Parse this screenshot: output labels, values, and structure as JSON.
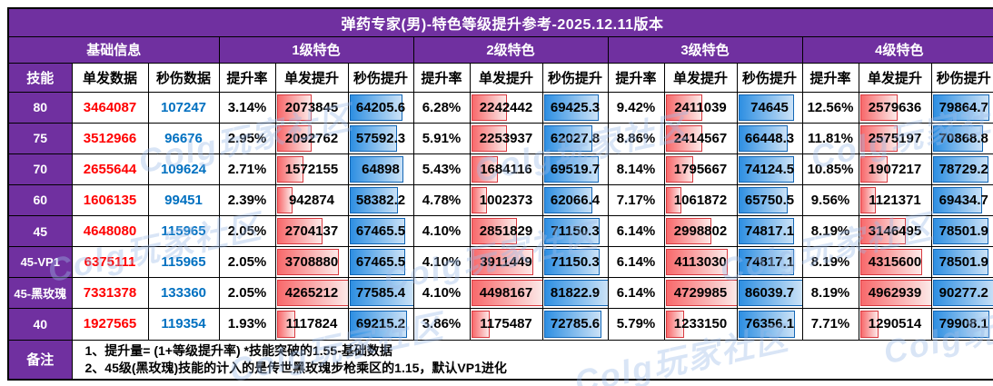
{
  "title": "弹药专家(男)-特色等级提升参考-2025.12.11版本",
  "header": {
    "group_base": "基础信息",
    "groups": [
      "1级特色",
      "2级特色",
      "3级特色",
      "4级特色"
    ],
    "skill": "技能",
    "base_cols": [
      "单发数据",
      "秒伤数据"
    ],
    "sub_cols": [
      "提升率",
      "单发提升",
      "秒伤提升"
    ]
  },
  "rows": [
    {
      "skill": "80",
      "base": [
        3464087,
        107247
      ],
      "levels": [
        {
          "rate": "3.14%",
          "single": 2073845,
          "dps": 64205.6
        },
        {
          "rate": "6.28%",
          "single": 2242442,
          "dps": 69425.3
        },
        {
          "rate": "9.42%",
          "single": 2411039,
          "dps": 74645
        },
        {
          "rate": "12.56%",
          "single": 2579636,
          "dps": 79864.7
        }
      ]
    },
    {
      "skill": "75",
      "base": [
        3512966,
        96676
      ],
      "levels": [
        {
          "rate": "2.95%",
          "single": 2092762,
          "dps": 57592.3
        },
        {
          "rate": "5.91%",
          "single": 2253937,
          "dps": 62027.8
        },
        {
          "rate": "8.86%",
          "single": 2414567,
          "dps": 66448.3
        },
        {
          "rate": "11.81%",
          "single": 2575197,
          "dps": 70868.8
        }
      ]
    },
    {
      "skill": "70",
      "base": [
        2655644,
        109624
      ],
      "levels": [
        {
          "rate": "2.71%",
          "single": 1572155,
          "dps": 64898
        },
        {
          "rate": "5.43%",
          "single": 1684116,
          "dps": 69519.7
        },
        {
          "rate": "8.14%",
          "single": 1795667,
          "dps": 74124.5
        },
        {
          "rate": "10.85%",
          "single": 1907217,
          "dps": 78729.2
        }
      ]
    },
    {
      "skill": "60",
      "base": [
        1606135,
        99451
      ],
      "levels": [
        {
          "rate": "2.39%",
          "single": 942874,
          "dps": 58382.2
        },
        {
          "rate": "4.78%",
          "single": 1002373,
          "dps": 62066.4
        },
        {
          "rate": "7.17%",
          "single": 1061872,
          "dps": 65750.5
        },
        {
          "rate": "9.56%",
          "single": 1121371,
          "dps": 69434.7
        }
      ]
    },
    {
      "skill": "45",
      "base": [
        4648080,
        115965
      ],
      "levels": [
        {
          "rate": "2.05%",
          "single": 2704137,
          "dps": 67465.5
        },
        {
          "rate": "4.10%",
          "single": 2851829,
          "dps": 71150.3
        },
        {
          "rate": "6.14%",
          "single": 2998802,
          "dps": 74817.1
        },
        {
          "rate": "8.19%",
          "single": 3146495,
          "dps": 78501.9
        }
      ]
    },
    {
      "skill": "45-VP1",
      "base": [
        6375111,
        115965
      ],
      "levels": [
        {
          "rate": "2.05%",
          "single": 3708880,
          "dps": 67465.5
        },
        {
          "rate": "4.10%",
          "single": 3911449,
          "dps": 71150.3
        },
        {
          "rate": "6.14%",
          "single": 4113030,
          "dps": 74817.1
        },
        {
          "rate": "8.19%",
          "single": 4315600,
          "dps": 78501.9
        }
      ]
    },
    {
      "skill": "45-黑玫瑰",
      "base": [
        7331378,
        133360
      ],
      "levels": [
        {
          "rate": "2.05%",
          "single": 4265212,
          "dps": 77585.4
        },
        {
          "rate": "4.10%",
          "single": 4498167,
          "dps": 81822.9
        },
        {
          "rate": "6.14%",
          "single": 4729985,
          "dps": 86039.7
        },
        {
          "rate": "8.19%",
          "single": 4962939,
          "dps": 90277.2
        }
      ]
    },
    {
      "skill": "40",
      "base": [
        1927565,
        119354
      ],
      "levels": [
        {
          "rate": "1.93%",
          "single": 1117824,
          "dps": 69215.2
        },
        {
          "rate": "3.86%",
          "single": 1175487,
          "dps": 72785.6
        },
        {
          "rate": "5.79%",
          "single": 1233150,
          "dps": 76356.1
        },
        {
          "rate": "7.71%",
          "single": 1290514,
          "dps": 79908.1
        }
      ]
    }
  ],
  "notes": {
    "label": "备注",
    "lines": [
      "1、提升量= (1+等级提升率) *技能突破的1.55-基础数据",
      "2、45级(黑玫瑰)技能的计入的是传世黑玫瑰步枪乘区的1.15，默认VP1进化"
    ]
  },
  "watermark": {
    "text": "Colg玩家社区"
  },
  "colors": {
    "purple": "#7030A0",
    "red_text": "#FF0000",
    "blue_text": "#0070C0",
    "bar_red_start": "#F8696B",
    "bar_red_border": "#D93A40",
    "bar_blue_start": "#2E8FE2",
    "bar_blue_border": "#1266B5"
  }
}
